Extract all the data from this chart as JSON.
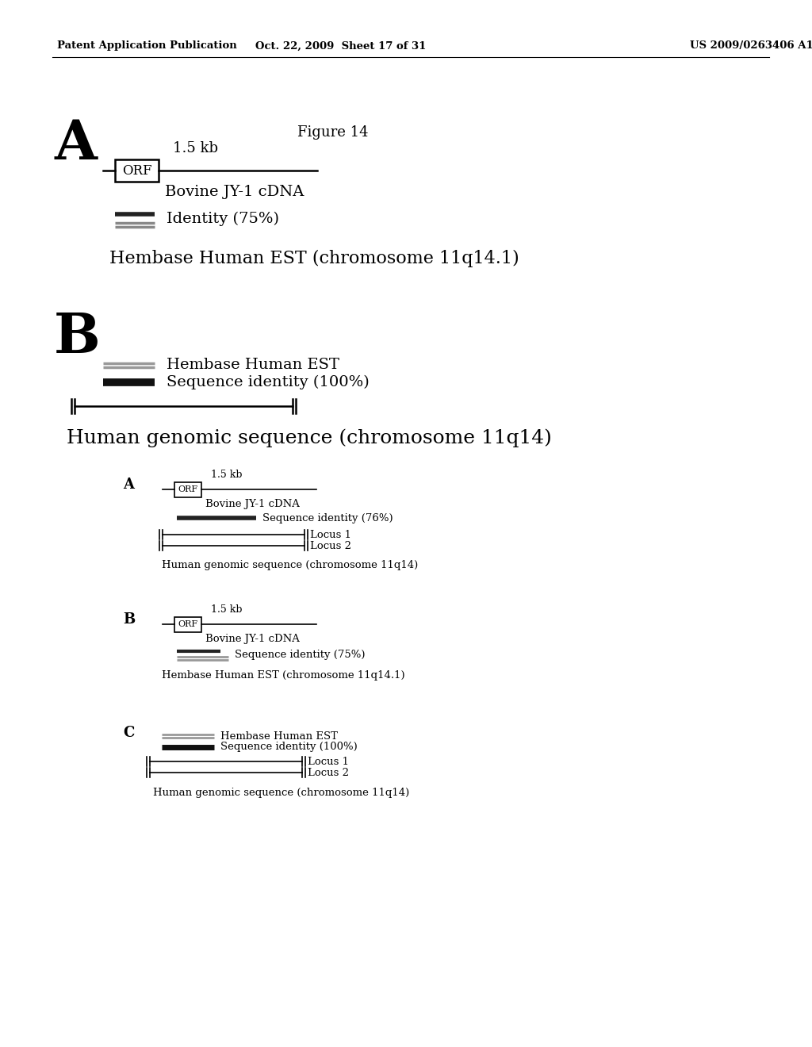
{
  "bg_color": "#ffffff",
  "header_left": "Patent Application Publication",
  "header_mid": "Oct. 22, 2009  Sheet 17 of 31",
  "header_right": "US 2009/0263406 A1"
}
